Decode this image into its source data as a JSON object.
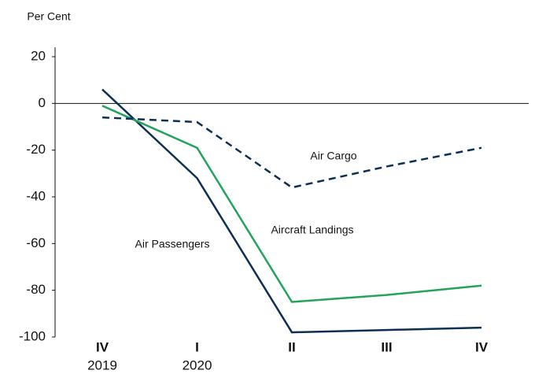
{
  "chart_data": {
    "type": "line",
    "y_label": "Per Cent",
    "categories": [
      "IV",
      "I",
      "II",
      "III",
      "IV"
    ],
    "years": [
      "2019",
      "2020",
      null,
      null,
      null
    ],
    "ylim": [
      -100,
      20
    ],
    "yticks": [
      20,
      0,
      -20,
      -40,
      -60,
      -80,
      -100
    ],
    "series": [
      {
        "name": "Air Passengers",
        "color": "#0d2f54",
        "dashed": false,
        "values": [
          6,
          -32,
          -98,
          -97,
          -96
        ]
      },
      {
        "name": "Aircraft Landings",
        "color": "#22a45a",
        "dashed": false,
        "values": [
          -1,
          -19,
          -85,
          -82,
          -78
        ]
      },
      {
        "name": "Air Cargo",
        "color": "#0d2f54",
        "dashed": true,
        "values": [
          -6,
          -8,
          -36,
          -27,
          -19
        ]
      }
    ]
  }
}
